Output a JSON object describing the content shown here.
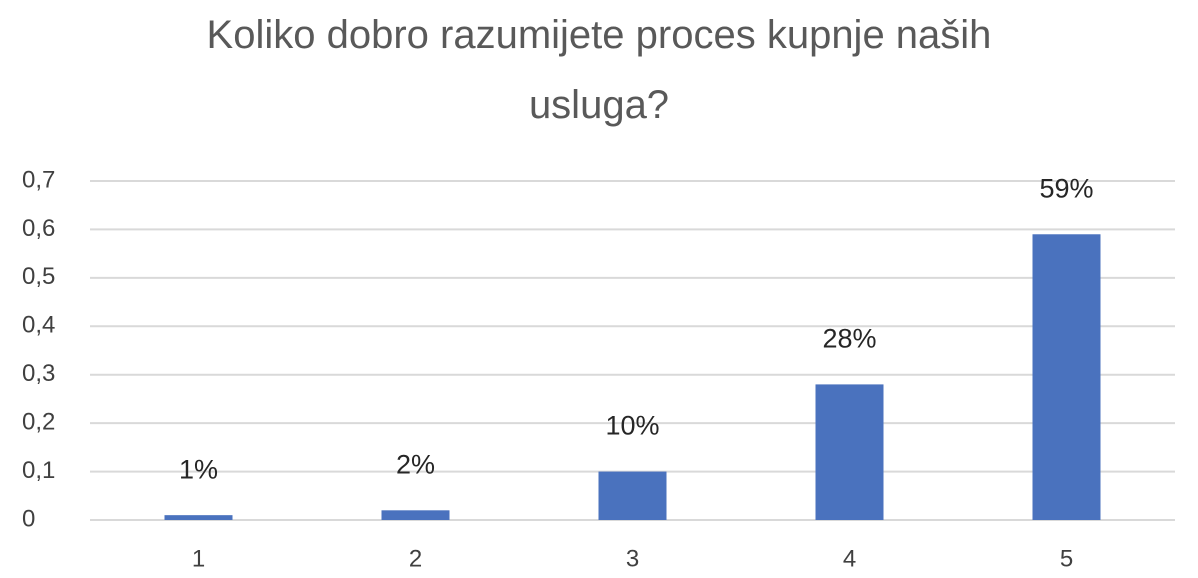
{
  "chart_data": {
    "type": "bar",
    "title": "Koliko dobro razumijete proces kupnje naših usluga?",
    "categories": [
      "1",
      "2",
      "3",
      "4",
      "5"
    ],
    "values": [
      0.01,
      0.02,
      0.1,
      0.28,
      0.59
    ],
    "value_labels": [
      "1%",
      "2%",
      "10%",
      "28%",
      "59%"
    ],
    "color": "#4a72be",
    "ylim": [
      0,
      0.7
    ],
    "yticks": [
      0,
      {
        "value": 0.1,
        "label": "0,1"
      },
      {
        "value": 0.2,
        "label": "0,2"
      },
      {
        "value": 0.3,
        "label": "0,3"
      },
      {
        "value": 0.4,
        "label": "0,4"
      },
      {
        "value": 0.5,
        "label": "0,5"
      },
      {
        "value": 0.6,
        "label": "0,6"
      },
      {
        "value": 0.7,
        "label": "0,7"
      }
    ],
    "grid": true
  }
}
